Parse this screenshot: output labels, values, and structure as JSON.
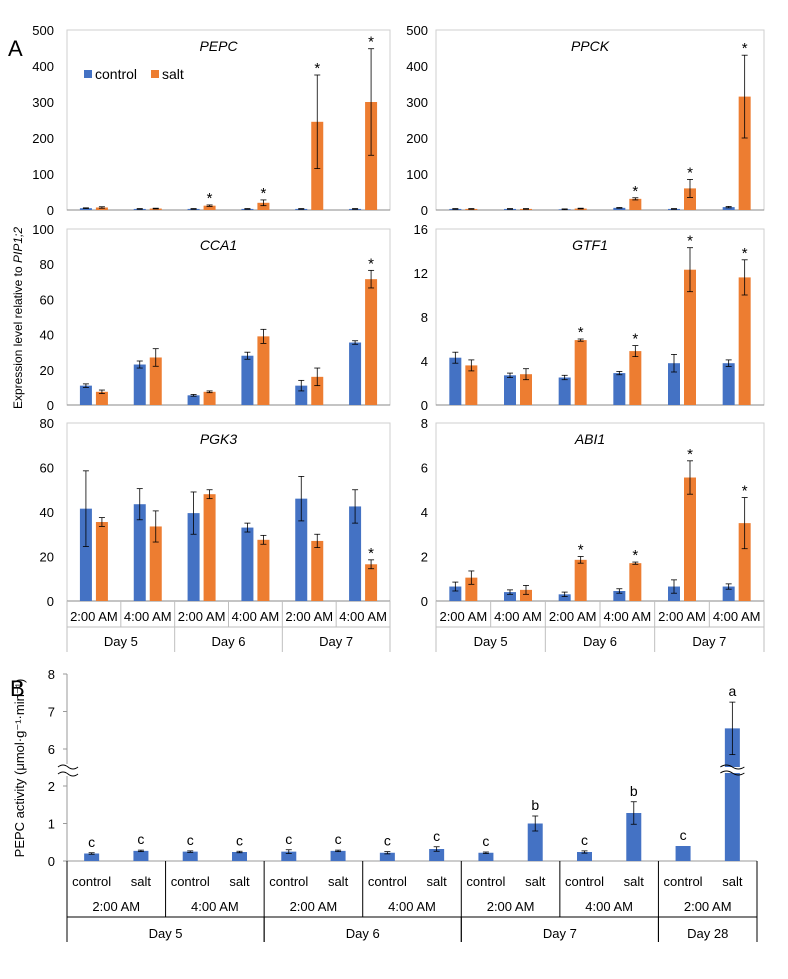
{
  "panel_a_letter": "A",
  "panel_b_letter": "B",
  "shared_ylabel_prefix": "Expression level relative to ",
  "shared_ylabel_gene": "PIP1;2",
  "colors": {
    "control": "#4472C4",
    "salt": "#ED7D31",
    "pepc_bar": "#4472C4",
    "axis": "#999999",
    "error": "#000000"
  },
  "legend": {
    "placement": "top-left of PEPC panel",
    "entries": [
      "control",
      "salt"
    ]
  },
  "x_time_labels": [
    "2:00 AM",
    "4:00 AM",
    "2:00 AM",
    "4:00 AM",
    "2:00 AM",
    "4:00 AM"
  ],
  "x_day_labels": [
    "Day 5",
    "Day 6",
    "Day 7"
  ],
  "chart_data": [
    {
      "type": "bar",
      "title": "PEPC",
      "ylim": [
        0,
        500
      ],
      "yticks": [
        "0",
        "100",
        "200",
        "300",
        "400",
        "500"
      ],
      "categories": [
        "Day 5 2:00 AM",
        "Day 5 4:00 AM",
        "Day 6 2:00 AM",
        "Day 6 4:00 AM",
        "Day 7 2:00 AM",
        "Day 7 4:00 AM"
      ],
      "series": [
        {
          "name": "control",
          "values": [
            5,
            3,
            3,
            3,
            3,
            3
          ],
          "errors": [
            1,
            1,
            1,
            1,
            1,
            1
          ]
        },
        {
          "name": "salt",
          "values": [
            7,
            4,
            12,
            20,
            245,
            300
          ],
          "errors": [
            2,
            1,
            2,
            8,
            130,
            148
          ]
        }
      ],
      "significance": [
        "",
        "",
        "*",
        "*",
        "*",
        "*"
      ]
    },
    {
      "type": "bar",
      "title": "PPCK",
      "ylim": [
        0,
        500
      ],
      "yticks": [
        "0",
        "100",
        "200",
        "300",
        "400",
        "500"
      ],
      "categories": [
        "Day 5 2:00 AM",
        "Day 5 4:00 AM",
        "Day 6 2:00 AM",
        "Day 6 4:00 AM",
        "Day 7 2:00 AM",
        "Day 7 4:00 AM"
      ],
      "series": [
        {
          "name": "control",
          "values": [
            3,
            3,
            2,
            6,
            3,
            8
          ],
          "errors": [
            1,
            1,
            1,
            1,
            1,
            2
          ]
        },
        {
          "name": "salt",
          "values": [
            3,
            3,
            4,
            31,
            60,
            315
          ],
          "errors": [
            1,
            1,
            1,
            3,
            25,
            115
          ]
        }
      ],
      "significance": [
        "",
        "",
        "",
        "*",
        "*",
        "*"
      ]
    },
    {
      "type": "bar",
      "title": "CCA1",
      "ylim": [
        0,
        100
      ],
      "yticks": [
        "0",
        "20",
        "40",
        "60",
        "80",
        "100"
      ],
      "categories": [
        "Day 5 2:00 AM",
        "Day 5 4:00 AM",
        "Day 6 2:00 AM",
        "Day 6 4:00 AM",
        "Day 7 2:00 AM",
        "Day 7 4:00 AM"
      ],
      "series": [
        {
          "name": "control",
          "values": [
            11,
            23,
            5.5,
            28,
            11,
            35.5
          ],
          "errors": [
            1,
            2,
            0.5,
            2,
            3,
            1
          ]
        },
        {
          "name": "salt",
          "values": [
            7.5,
            27,
            7.5,
            39,
            16,
            71.5
          ],
          "errors": [
            1,
            5,
            0.5,
            4,
            5,
            5
          ]
        }
      ],
      "significance": [
        "",
        "",
        "",
        "",
        "",
        "*"
      ]
    },
    {
      "type": "bar",
      "title": "GTF1",
      "ylim": [
        0,
        16
      ],
      "yticks": [
        "0",
        "4",
        "8",
        "12",
        "16"
      ],
      "categories": [
        "Day 5 2:00 AM",
        "Day 5 4:00 AM",
        "Day 6 2:00 AM",
        "Day 6 4:00 AM",
        "Day 7 2:00 AM",
        "Day 7 4:00 AM"
      ],
      "series": [
        {
          "name": "control",
          "values": [
            4.3,
            2.7,
            2.5,
            2.9,
            3.8,
            3.8
          ],
          "errors": [
            0.5,
            0.2,
            0.2,
            0.15,
            0.8,
            0.3
          ]
        },
        {
          "name": "salt",
          "values": [
            3.6,
            2.8,
            5.9,
            4.9,
            12.3,
            11.6
          ],
          "errors": [
            0.5,
            0.5,
            0.1,
            0.5,
            2.0,
            1.6
          ]
        }
      ],
      "significance": [
        "",
        "",
        "*",
        "*",
        "*",
        "*"
      ]
    },
    {
      "type": "bar",
      "title": "PGK3",
      "ylim": [
        0,
        80
      ],
      "yticks": [
        "0",
        "20",
        "40",
        "60",
        "80"
      ],
      "categories": [
        "Day 5 2:00 AM",
        "Day 5 4:00 AM",
        "Day 6 2:00 AM",
        "Day 6 4:00 AM",
        "Day 7 2:00 AM",
        "Day 7 4:00 AM"
      ],
      "series": [
        {
          "name": "control",
          "values": [
            41.5,
            43.5,
            39.5,
            33,
            46,
            42.5
          ],
          "errors": [
            17,
            7,
            9.5,
            2,
            10,
            7.5
          ]
        },
        {
          "name": "salt",
          "values": [
            35.5,
            33.5,
            48,
            27.5,
            27,
            16.5
          ],
          "errors": [
            2,
            7,
            2,
            2,
            3,
            2
          ]
        }
      ],
      "significance": [
        "",
        "",
        "",
        "",
        "",
        "*"
      ]
    },
    {
      "type": "bar",
      "title": "ABI1",
      "ylim": [
        0,
        8
      ],
      "yticks": [
        "0",
        "2",
        "4",
        "6",
        "8"
      ],
      "categories": [
        "Day 5 2:00 AM",
        "Day 5 4:00 AM",
        "Day 6 2:00 AM",
        "Day 6 4:00 AM",
        "Day 7 2:00 AM",
        "Day 7 4:00 AM"
      ],
      "series": [
        {
          "name": "control",
          "values": [
            0.65,
            0.4,
            0.3,
            0.45,
            0.65,
            0.65
          ],
          "errors": [
            0.2,
            0.1,
            0.1,
            0.1,
            0.3,
            0.12
          ]
        },
        {
          "name": "salt",
          "values": [
            1.05,
            0.5,
            1.85,
            1.7,
            5.55,
            3.5
          ],
          "errors": [
            0.3,
            0.2,
            0.15,
            0.05,
            0.75,
            1.15
          ]
        }
      ],
      "significance": [
        "",
        "",
        "*",
        "*",
        "*",
        "*"
      ]
    },
    {
      "type": "bar",
      "ylabel": "PEPC activity (μmol·g⁻¹·min⁻¹)",
      "axis_break": [
        2.3,
        5.3
      ],
      "lower_yticks": [
        "0",
        "1",
        "2"
      ],
      "upper_yticks": [
        "6",
        "7",
        "8"
      ],
      "categories": [
        "control",
        "salt",
        "control",
        "salt",
        "control",
        "salt",
        "control",
        "salt",
        "control",
        "salt",
        "control",
        "salt",
        "control",
        "salt"
      ],
      "values": [
        0.2,
        0.27,
        0.25,
        0.24,
        0.25,
        0.27,
        0.22,
        0.32,
        0.22,
        1.0,
        0.24,
        1.28,
        0.4,
        6.55
      ],
      "errors": [
        0.02,
        0.02,
        0.02,
        0.02,
        0.05,
        0.02,
        0.03,
        0.06,
        0.02,
        0.2,
        0.03,
        0.3,
        0,
        0.7
      ],
      "letters": [
        "c",
        "c",
        "c",
        "c",
        "c",
        "c",
        "c",
        "c",
        "c",
        "b",
        "c",
        "b",
        "c",
        "a"
      ],
      "time_labels": [
        "2:00 AM",
        "4:00 AM",
        "2:00 AM",
        "4:00 AM",
        "2:00 AM",
        "4:00 AM",
        "2:00 AM"
      ],
      "day_labels": [
        "Day 5",
        "Day 6",
        "Day 7",
        "Day 28"
      ]
    }
  ]
}
